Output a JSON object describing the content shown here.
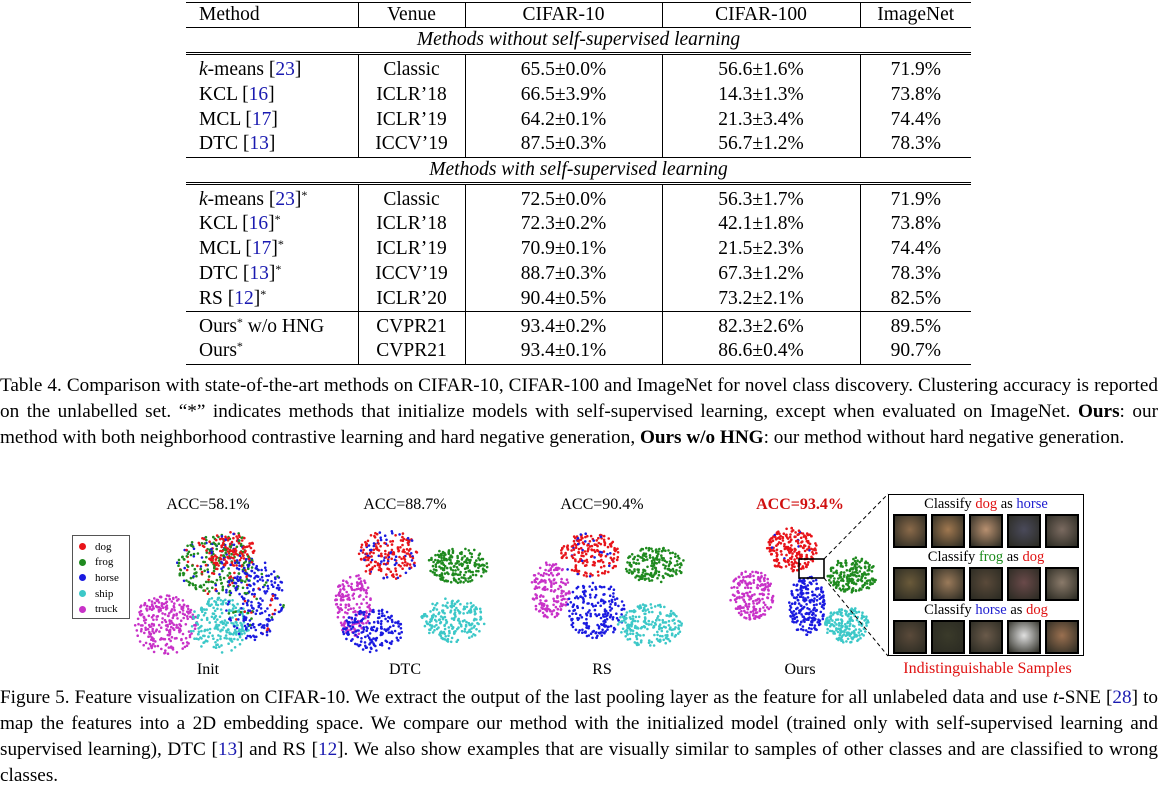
{
  "table": {
    "headers": [
      "Method",
      "Venue",
      "CIFAR-10",
      "CIFAR-100",
      "ImageNet"
    ],
    "section1": "Methods without self-supervised learning",
    "section2": "Methods with self-supervised learning",
    "rows1": [
      {
        "method": "-means",
        "method_prefix": "k",
        "ref": "23",
        "star": "",
        "venue": "Classic",
        "c10": "65.5±0.0%",
        "c100": "56.6±1.6%",
        "in": "71.9%"
      },
      {
        "method": "KCL",
        "method_prefix": "",
        "ref": "16",
        "star": "",
        "venue": "ICLR’18",
        "c10": "66.5±3.9%",
        "c100": "14.3±1.3%",
        "in": "73.8%"
      },
      {
        "method": "MCL",
        "method_prefix": "",
        "ref": "17",
        "star": "",
        "venue": "ICLR’19",
        "c10": "64.2±0.1%",
        "c100": "21.3±3.4%",
        "in": "74.4%"
      },
      {
        "method": "DTC",
        "method_prefix": "",
        "ref": "13",
        "star": "",
        "venue": "ICCV’19",
        "c10": "87.5±0.3%",
        "c100": "56.7±1.2%",
        "in": "78.3%"
      }
    ],
    "rows2": [
      {
        "method": "-means",
        "method_prefix": "k",
        "ref": "23",
        "star": "*",
        "venue": "Classic",
        "c10": "72.5±0.0%",
        "c100": "56.3±1.7%",
        "in": "71.9%"
      },
      {
        "method": "KCL",
        "method_prefix": "",
        "ref": "16",
        "star": "*",
        "venue": "ICLR’18",
        "c10": "72.3±0.2%",
        "c100": "42.1±1.8%",
        "in": "73.8%"
      },
      {
        "method": "MCL",
        "method_prefix": "",
        "ref": "17",
        "star": "*",
        "venue": "ICLR’19",
        "c10": "70.9±0.1%",
        "c100": "21.5±2.3%",
        "in": "74.4%"
      },
      {
        "method": "DTC",
        "method_prefix": "",
        "ref": "13",
        "star": "*",
        "venue": "ICCV’19",
        "c10": "88.7±0.3%",
        "c100": "67.3±1.2%",
        "in": "78.3%"
      },
      {
        "method": "RS",
        "method_prefix": "",
        "ref": "12",
        "star": "*",
        "venue": "ICLR’20",
        "c10": "90.4±0.5%",
        "c100": "73.2±2.1%",
        "in": "82.5%"
      }
    ],
    "ours_rows": [
      {
        "method": "Ours",
        "suffix": " w/o HNG",
        "star": "*",
        "venue": "CVPR21",
        "c10": "93.4±0.2%",
        "c100": "82.3±2.6%",
        "in": "89.5%"
      },
      {
        "method": "Ours",
        "suffix": "",
        "star": "*",
        "venue": "CVPR21",
        "c10": "93.4±0.1%",
        "c100": "86.6±0.4%",
        "in": "90.7%"
      }
    ]
  },
  "table_caption": {
    "p1": "Table 4. Comparison with state-of-the-art methods on CIFAR-10, CIFAR-100 and ImageNet for novel class discovery. Clustering accuracy is reported on the unlabelled set. “*” indicates methods that initialize models with self-supervised learning, except when evaluated on ImageNet. ",
    "b1": "Ours",
    "p2": ": our method with both neighborhood contrastive learning and hard negative generation, ",
    "b2": "Ours w/o HNG",
    "p3": ": our method without hard negative generation."
  },
  "figure": {
    "panels": [
      {
        "title": "ACC=58.1%",
        "label": "Init"
      },
      {
        "title": "ACC=88.7%",
        "label": "DTC"
      },
      {
        "title": "ACC=90.4%",
        "label": "RS"
      },
      {
        "title": "ACC=93.4%",
        "label": "Ours"
      }
    ],
    "legend": [
      {
        "name": "dog",
        "color": "#e8141a"
      },
      {
        "name": "frog",
        "color": "#1f8a1f"
      },
      {
        "name": "horse",
        "color": "#1a1ae0"
      },
      {
        "name": "ship",
        "color": "#3cc8c8"
      },
      {
        "name": "truck",
        "color": "#c832c8"
      }
    ],
    "samples": [
      {
        "pre": "Classify ",
        "a": "dog",
        "mid": " as ",
        "b": "horse"
      },
      {
        "pre": "Classify ",
        "a": "frog",
        "mid": " as ",
        "b": "dog"
      },
      {
        "pre": "Classify ",
        "a": "horse",
        "mid": " as ",
        "b": "dog"
      }
    ],
    "indistinguishable": "Indistinguishable Samples"
  },
  "figure_caption": {
    "p1": "Figure 5. Feature visualization on CIFAR-10.  We extract the output of the last pooling layer as the feature for all unlabeled data and use ",
    "t": "t",
    "p2": "-SNE [",
    "r1": "28",
    "p3": "] to map the features into a 2D embedding space.  We compare our method with the initialized model (trained only with self-supervised learning and supervised learning), DTC [",
    "r2": "13",
    "p4": "] and RS [",
    "r3": "12",
    "p5": "]. We also show examples that are visually similar to samples of other classes and are classified to wrong classes."
  }
}
